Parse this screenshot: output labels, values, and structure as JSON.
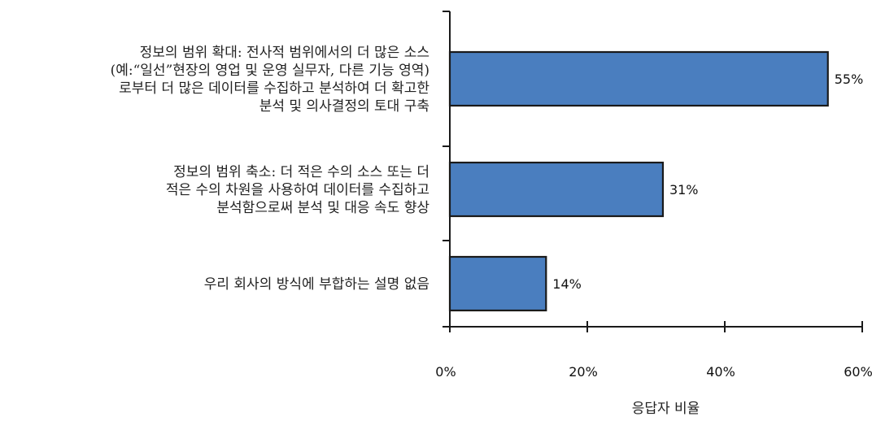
{
  "chart_data": {
    "type": "bar",
    "orientation": "horizontal",
    "categories": [
      [
        "정보의 범위 확대: 전사적 범위에서의 더 많은 소스",
        "(예:“일선”현장의 영업 및 운영 실무자, 다른 기능 영역)",
        "로부터 더 많은 데이터를 수집하고 분석하여 더 확고한",
        "분석 및 의사결정의 토대 구축"
      ],
      [
        "정보의 범위 축소: 더 적은 수의 소스 또는 더",
        "적은 수의 차원을 사용하여 데이터를 수집하고",
        "분석함으로써 분석 및 대응 속도 향상"
      ],
      [
        "우리 회사의 방식에 부합하는 설명 없음"
      ]
    ],
    "values": [
      55,
      31,
      14
    ],
    "data_labels": [
      "55%",
      "31%",
      "14%"
    ],
    "xlabel": "응답자 비율",
    "ylabel": "",
    "title": "",
    "xlim": [
      0,
      60
    ],
    "xticks": [
      0,
      20,
      40,
      60
    ],
    "xtick_labels": [
      "0%",
      "20%",
      "40%",
      "60%"
    ],
    "grid": false,
    "legend": "none",
    "bar_color": "#4a7ebf",
    "bar_edge_color": "#1a1a1a"
  }
}
